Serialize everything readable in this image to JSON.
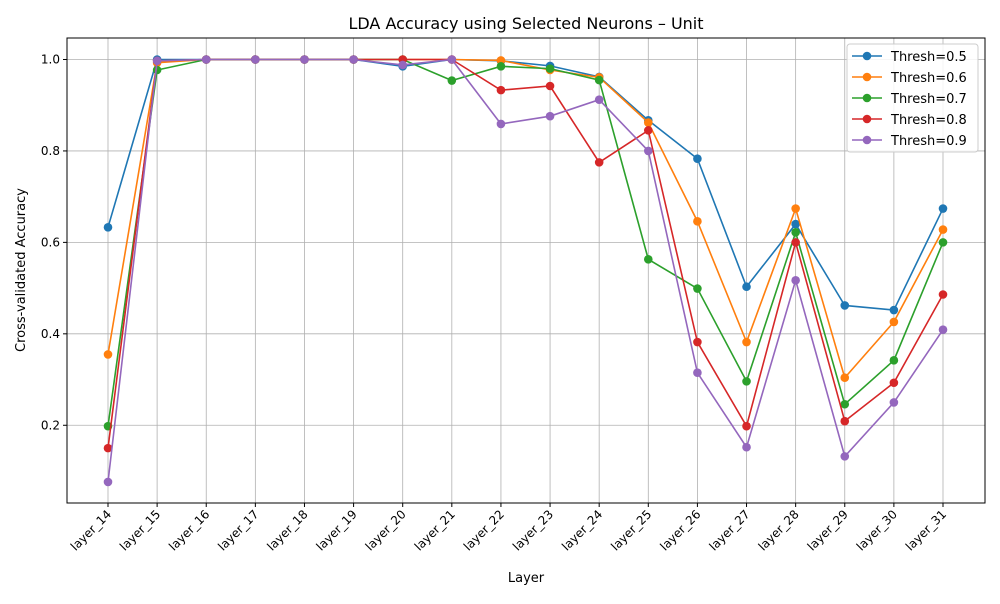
{
  "chart_data": {
    "type": "line",
    "title": "LDA Accuracy using Selected Neurons – Unit",
    "xlabel": "Layer",
    "ylabel": "Cross-validated Accuracy",
    "categories": [
      "layer_14",
      "layer_15",
      "layer_16",
      "layer_17",
      "layer_18",
      "layer_19",
      "layer_20",
      "layer_21",
      "layer_22",
      "layer_23",
      "layer_24",
      "layer_25",
      "layer_26",
      "layer_27",
      "layer_28",
      "layer_29",
      "layer_30",
      "layer_31"
    ],
    "ylim": [
      0.03,
      1.047
    ],
    "yticks": [
      0.2,
      0.4,
      0.6,
      0.8,
      1.0
    ],
    "ytick_labels": [
      "0.2",
      "0.4",
      "0.6",
      "0.8",
      "1.0"
    ],
    "grid": true,
    "legend_position": "top-right",
    "series": [
      {
        "name": "Thresh=0.5",
        "color": "#1f77b4",
        "values": [
          0.633,
          1.0,
          1.0,
          1.0,
          1.0,
          1.0,
          0.985,
          1.0,
          0.997,
          0.986,
          0.962,
          0.867,
          0.783,
          0.503,
          0.64,
          0.462,
          0.452,
          0.674
        ]
      },
      {
        "name": "Thresh=0.6",
        "color": "#ff7f0e",
        "values": [
          0.355,
          0.993,
          1.0,
          1.0,
          1.0,
          1.0,
          1.0,
          1.0,
          0.998,
          0.977,
          0.961,
          0.862,
          0.646,
          0.382,
          0.674,
          0.304,
          0.426,
          0.628
        ]
      },
      {
        "name": "Thresh=0.7",
        "color": "#2ca02c",
        "values": [
          0.198,
          0.977,
          1.0,
          1.0,
          1.0,
          1.0,
          1.0,
          0.954,
          0.985,
          0.98,
          0.955,
          0.563,
          0.499,
          0.296,
          0.622,
          0.246,
          0.342,
          0.6
        ]
      },
      {
        "name": "Thresh=0.8",
        "color": "#d62728",
        "values": [
          0.15,
          0.997,
          1.0,
          1.0,
          1.0,
          1.0,
          1.0,
          1.0,
          0.933,
          0.942,
          0.775,
          0.845,
          0.382,
          0.198,
          0.6,
          0.209,
          0.293,
          0.486
        ]
      },
      {
        "name": "Thresh=0.9",
        "color": "#9467bd",
        "values": [
          0.076,
          0.997,
          1.0,
          1.0,
          1.0,
          1.0,
          0.988,
          1.0,
          0.859,
          0.876,
          0.912,
          0.8,
          0.315,
          0.152,
          0.517,
          0.132,
          0.25,
          0.409
        ]
      }
    ]
  }
}
